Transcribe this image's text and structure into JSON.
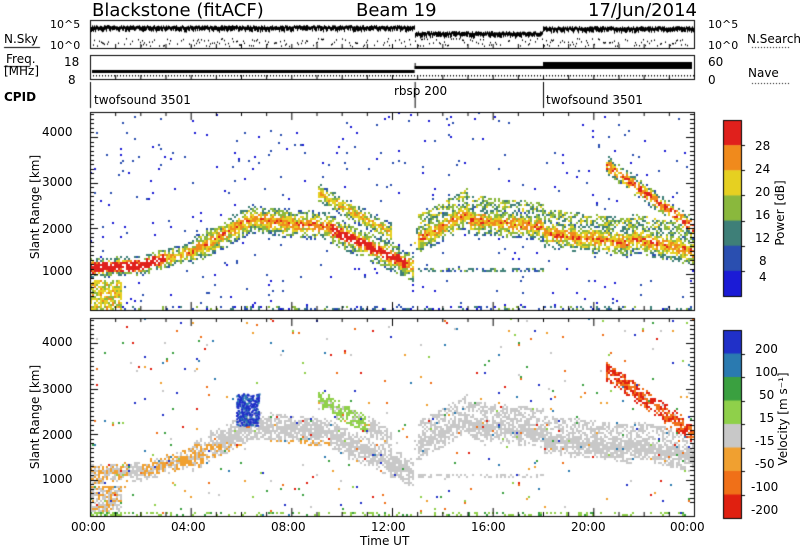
{
  "header": {
    "station": "Blackstone (fitACF)",
    "beam": "Beam 19",
    "date": "17/Jun/2014"
  },
  "top_panels": {
    "nsky_label": "N.Sky",
    "nsky_ticks": [
      "10^5",
      "10^0"
    ],
    "nsearch_label": "N.Search",
    "nsearch_ticks": [
      "10^5",
      "10^0"
    ],
    "freq_label": "Freq.",
    "freq_unit": "[MHz]",
    "freq_ticks": [
      "18",
      "8"
    ],
    "nave_label": "Nave",
    "nave_ticks": [
      "60",
      "0"
    ],
    "cpid_label": "CPID",
    "cpid_segments": [
      {
        "label": "twofsound 3501",
        "start_hour": 0
      },
      {
        "label": "rbsp 200",
        "start_hour": 12.9
      },
      {
        "label": "twofsound 3501",
        "start_hour": 18
      }
    ]
  },
  "chart_data": [
    {
      "type": "heatmap",
      "name": "power",
      "ylabel": "Slant Range [km]",
      "yticks": [
        1000,
        2000,
        3000,
        4000
      ],
      "ylim": [
        200,
        4500
      ],
      "xlim": [
        0,
        24
      ],
      "colorbar_label": "Power [dB]",
      "colorbar_ticks": [
        "4",
        "8",
        "12",
        "16",
        "20",
        "24",
        "28"
      ],
      "colorbar_colors": [
        "#1b1bd6",
        "#2a4fb0",
        "#3e7f78",
        "#8ab83d",
        "#e6d021",
        "#f08a1c",
        "#e0201c"
      ]
    },
    {
      "type": "heatmap",
      "name": "velocity",
      "ylabel": "Slant Range [km]",
      "yticks": [
        1000,
        2000,
        3000,
        4000
      ],
      "ylim": [
        200,
        4500
      ],
      "xlim": [
        0,
        24
      ],
      "colorbar_label": "Velocity [m s⁻¹]",
      "colorbar_ticks": [
        "200",
        "100",
        "50",
        "15",
        "-15",
        "-50",
        "-100",
        "-200"
      ],
      "colorbar_colors": [
        "#2030c8",
        "#2a7ab0",
        "#3aa040",
        "#8fd04a",
        "#c8c8c8",
        "#f0a030",
        "#f07018",
        "#e02010"
      ]
    }
  ],
  "xaxis": {
    "ticks": [
      "00:00",
      "04:00",
      "08:00",
      "12:00",
      "16:00",
      "20:00",
      "00:00"
    ],
    "label": "Time UT"
  }
}
